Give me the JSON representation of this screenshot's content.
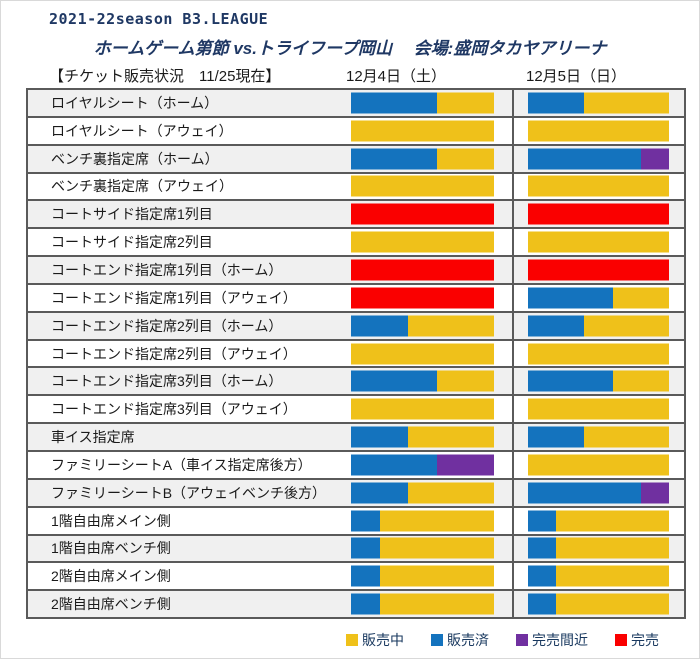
{
  "header": {
    "season_title": "2021-22season B3.LEAGUE",
    "match_title": "ホームゲーム第節 vs.トライフープ岡山　 会場:盛岡タカヤアリーナ",
    "status_label": "【チケット販売状況　11/25現在】",
    "date_columns": [
      "12月4日（土）",
      "12月5日（日）"
    ]
  },
  "colors": {
    "on_sale": "#efc11a",
    "sold": "#1473be",
    "almost_sold_out": "#7030a0",
    "sold_out": "#fa0000",
    "navy_text": "#1f3864",
    "row_stripe": "#f0f0f0",
    "table_border": "#5a5a5a"
  },
  "legend": [
    {
      "status": "on_sale",
      "label": "販売中"
    },
    {
      "status": "sold",
      "label": "販売済"
    },
    {
      "status": "almost_sold_out",
      "label": "完売間近"
    },
    {
      "status": "sold_out",
      "label": "完売"
    }
  ],
  "chart_data": {
    "type": "bar",
    "subtype": "horizontal-stacked-status-bars",
    "title": "チケット販売状況 11/25現在",
    "columns": [
      "12月4日（土）",
      "12月5日（日）"
    ],
    "status_names": {
      "on_sale": "販売中",
      "sold": "販売済",
      "almost_sold_out": "完売間近",
      "sold_out": "完売"
    },
    "unit": "percent of bar width (estimated in 20% steps)",
    "legend_position": "bottom",
    "rows": [
      {
        "seat": "ロイヤルシート（ホーム）",
        "dec4": [
          {
            "status": "sold",
            "pct": 60
          },
          {
            "status": "on_sale",
            "pct": 40
          }
        ],
        "dec5": [
          {
            "status": "sold",
            "pct": 40
          },
          {
            "status": "on_sale",
            "pct": 60
          }
        ]
      },
      {
        "seat": "ロイヤルシート（アウェイ）",
        "dec4": [
          {
            "status": "on_sale",
            "pct": 100
          }
        ],
        "dec5": [
          {
            "status": "on_sale",
            "pct": 100
          }
        ]
      },
      {
        "seat": "ベンチ裏指定席（ホーム）",
        "dec4": [
          {
            "status": "sold",
            "pct": 60
          },
          {
            "status": "on_sale",
            "pct": 40
          }
        ],
        "dec5": [
          {
            "status": "sold",
            "pct": 80
          },
          {
            "status": "almost_sold_out",
            "pct": 20
          }
        ]
      },
      {
        "seat": "ベンチ裏指定席（アウェイ）",
        "dec4": [
          {
            "status": "on_sale",
            "pct": 100
          }
        ],
        "dec5": [
          {
            "status": "on_sale",
            "pct": 100
          }
        ]
      },
      {
        "seat": "コートサイド指定席1列目",
        "dec4": [
          {
            "status": "sold_out",
            "pct": 100
          }
        ],
        "dec5": [
          {
            "status": "sold_out",
            "pct": 100
          }
        ]
      },
      {
        "seat": "コートサイド指定席2列目",
        "dec4": [
          {
            "status": "on_sale",
            "pct": 100
          }
        ],
        "dec5": [
          {
            "status": "on_sale",
            "pct": 100
          }
        ]
      },
      {
        "seat": "コートエンド指定席1列目（ホーム）",
        "dec4": [
          {
            "status": "sold_out",
            "pct": 100
          }
        ],
        "dec5": [
          {
            "status": "sold_out",
            "pct": 100
          }
        ]
      },
      {
        "seat": "コートエンド指定席1列目（アウェイ）",
        "dec4": [
          {
            "status": "sold_out",
            "pct": 100
          }
        ],
        "dec5": [
          {
            "status": "sold",
            "pct": 60
          },
          {
            "status": "on_sale",
            "pct": 40
          }
        ]
      },
      {
        "seat": "コートエンド指定席2列目（ホーム）",
        "dec4": [
          {
            "status": "sold",
            "pct": 40
          },
          {
            "status": "on_sale",
            "pct": 60
          }
        ],
        "dec5": [
          {
            "status": "sold",
            "pct": 40
          },
          {
            "status": "on_sale",
            "pct": 60
          }
        ]
      },
      {
        "seat": "コートエンド指定席2列目（アウェイ）",
        "dec4": [
          {
            "status": "on_sale",
            "pct": 100
          }
        ],
        "dec5": [
          {
            "status": "on_sale",
            "pct": 100
          }
        ]
      },
      {
        "seat": "コートエンド指定席3列目（ホーム）",
        "dec4": [
          {
            "status": "sold",
            "pct": 60
          },
          {
            "status": "on_sale",
            "pct": 40
          }
        ],
        "dec5": [
          {
            "status": "sold",
            "pct": 60
          },
          {
            "status": "on_sale",
            "pct": 40
          }
        ]
      },
      {
        "seat": "コートエンド指定席3列目（アウェイ）",
        "dec4": [
          {
            "status": "on_sale",
            "pct": 100
          }
        ],
        "dec5": [
          {
            "status": "on_sale",
            "pct": 100
          }
        ]
      },
      {
        "seat": "車イス指定席",
        "dec4": [
          {
            "status": "sold",
            "pct": 40
          },
          {
            "status": "on_sale",
            "pct": 60
          }
        ],
        "dec5": [
          {
            "status": "sold",
            "pct": 40
          },
          {
            "status": "on_sale",
            "pct": 60
          }
        ]
      },
      {
        "seat": "ファミリーシートA（車イス指定席後方）",
        "dec4": [
          {
            "status": "sold",
            "pct": 60
          },
          {
            "status": "almost_sold_out",
            "pct": 40
          }
        ],
        "dec5": [
          {
            "status": "on_sale",
            "pct": 100
          }
        ]
      },
      {
        "seat": "ファミリーシートB（アウェイベンチ後方）",
        "dec4": [
          {
            "status": "sold",
            "pct": 40
          },
          {
            "status": "on_sale",
            "pct": 60
          }
        ],
        "dec5": [
          {
            "status": "sold",
            "pct": 80
          },
          {
            "status": "almost_sold_out",
            "pct": 20
          }
        ]
      },
      {
        "seat": "1階自由席メイン側",
        "dec4": [
          {
            "status": "sold",
            "pct": 20
          },
          {
            "status": "on_sale",
            "pct": 80
          }
        ],
        "dec5": [
          {
            "status": "sold",
            "pct": 20
          },
          {
            "status": "on_sale",
            "pct": 80
          }
        ]
      },
      {
        "seat": "1階自由席ベンチ側",
        "dec4": [
          {
            "status": "sold",
            "pct": 20
          },
          {
            "status": "on_sale",
            "pct": 80
          }
        ],
        "dec5": [
          {
            "status": "sold",
            "pct": 20
          },
          {
            "status": "on_sale",
            "pct": 80
          }
        ]
      },
      {
        "seat": "2階自由席メイン側",
        "dec4": [
          {
            "status": "sold",
            "pct": 20
          },
          {
            "status": "on_sale",
            "pct": 80
          }
        ],
        "dec5": [
          {
            "status": "sold",
            "pct": 20
          },
          {
            "status": "on_sale",
            "pct": 80
          }
        ]
      },
      {
        "seat": "2階自由席ベンチ側",
        "dec4": [
          {
            "status": "sold",
            "pct": 20
          },
          {
            "status": "on_sale",
            "pct": 80
          }
        ],
        "dec5": [
          {
            "status": "sold",
            "pct": 20
          },
          {
            "status": "on_sale",
            "pct": 80
          }
        ]
      }
    ]
  }
}
